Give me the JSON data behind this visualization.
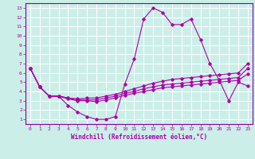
{
  "xlabel": "Windchill (Refroidissement éolien,°C)",
  "bg_color": "#cceee8",
  "line_color": "#aa00aa",
  "grid_color": "#ffffff",
  "xlim": [
    -0.5,
    23.5
  ],
  "ylim": [
    0.5,
    13.5
  ],
  "xticks": [
    0,
    1,
    2,
    3,
    4,
    5,
    6,
    7,
    8,
    9,
    10,
    11,
    12,
    13,
    14,
    15,
    16,
    17,
    18,
    19,
    20,
    21,
    22,
    23
  ],
  "yticks": [
    1,
    2,
    3,
    4,
    5,
    6,
    7,
    8,
    9,
    10,
    11,
    12,
    13
  ],
  "lines": [
    {
      "x": [
        0,
        1,
        2,
        3,
        4,
        5,
        6,
        7,
        8,
        9,
        10,
        11,
        12,
        13,
        14,
        15,
        16,
        17,
        18,
        19,
        20,
        21,
        22,
        23
      ],
      "y": [
        6.5,
        4.5,
        3.5,
        3.5,
        2.5,
        1.8,
        1.3,
        1.0,
        1.0,
        1.3,
        4.8,
        7.5,
        11.8,
        13.0,
        12.5,
        11.2,
        11.2,
        11.8,
        9.6,
        7.0,
        5.2,
        3.0,
        5.0,
        4.6
      ]
    },
    {
      "x": [
        0,
        1,
        2,
        3,
        4,
        5,
        6,
        7,
        8,
        9,
        10,
        11,
        12,
        13,
        14,
        15,
        16,
        17,
        18,
        19,
        20,
        21,
        22,
        23
      ],
      "y": [
        6.5,
        4.5,
        3.5,
        3.5,
        3.3,
        3.2,
        3.3,
        3.3,
        3.5,
        3.7,
        4.0,
        4.3,
        4.6,
        4.9,
        5.1,
        5.3,
        5.4,
        5.5,
        5.6,
        5.7,
        5.8,
        5.9,
        6.0,
        7.0
      ]
    },
    {
      "x": [
        0,
        1,
        2,
        3,
        4,
        5,
        6,
        7,
        8,
        9,
        10,
        11,
        12,
        13,
        14,
        15,
        16,
        17,
        18,
        19,
        20,
        21,
        22,
        23
      ],
      "y": [
        6.5,
        4.5,
        3.5,
        3.5,
        3.3,
        3.1,
        3.1,
        3.1,
        3.3,
        3.5,
        3.8,
        4.0,
        4.3,
        4.5,
        4.7,
        4.8,
        4.9,
        5.0,
        5.1,
        5.2,
        5.3,
        5.4,
        5.5,
        6.5
      ]
    },
    {
      "x": [
        0,
        1,
        2,
        3,
        4,
        5,
        6,
        7,
        8,
        9,
        10,
        11,
        12,
        13,
        14,
        15,
        16,
        17,
        18,
        19,
        20,
        21,
        22,
        23
      ],
      "y": [
        6.5,
        4.5,
        3.5,
        3.5,
        3.2,
        3.0,
        3.0,
        2.9,
        3.1,
        3.3,
        3.6,
        3.8,
        4.0,
        4.2,
        4.4,
        4.5,
        4.6,
        4.7,
        4.8,
        4.9,
        5.0,
        5.1,
        5.2,
        5.9
      ]
    }
  ]
}
